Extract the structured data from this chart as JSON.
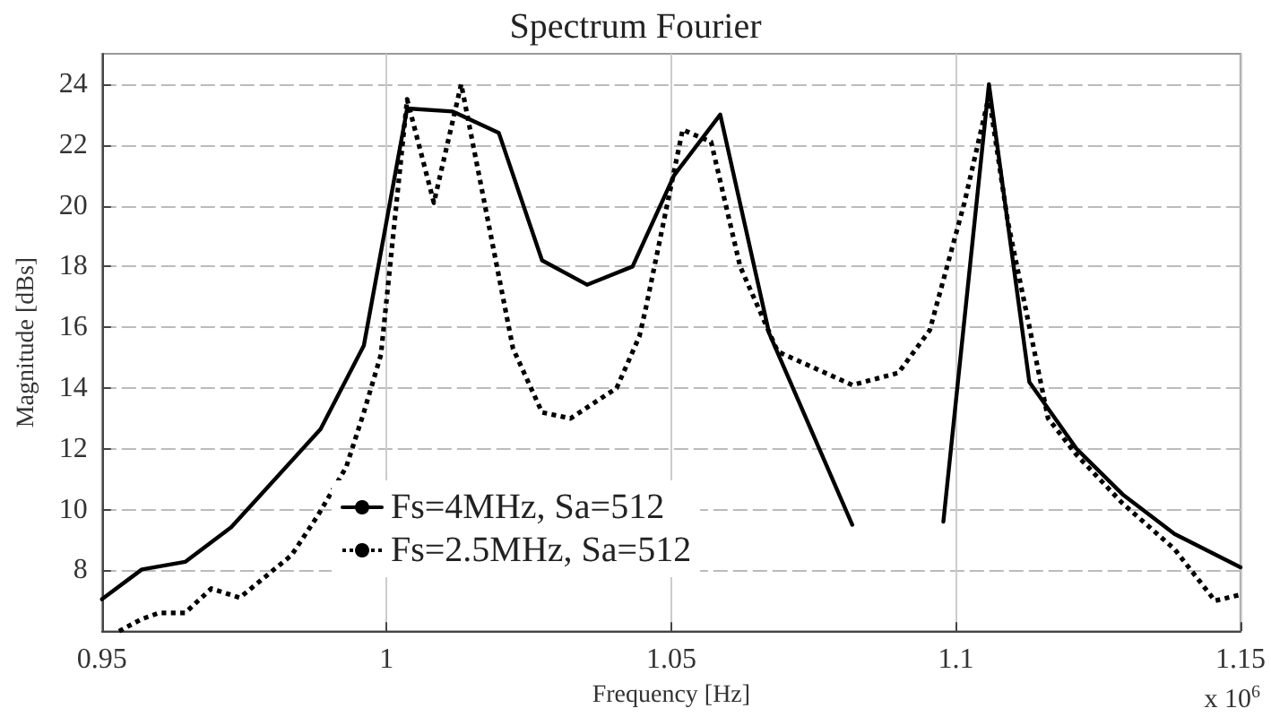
{
  "chart_data": {
    "type": "line",
    "title": "Spectrum Fourier",
    "xlabel": "Frequency [Hz]",
    "ylabel": "Magnitude [dBs]",
    "annotations": [
      "x 10$^{6}$"
    ],
    "xlim": [
      0.95,
      1.15
    ],
    "xticks": [
      0.95,
      1,
      1.05,
      1.1,
      1.15
    ],
    "ylim": [
      6,
      25
    ],
    "yticks": [
      8,
      10,
      12,
      14,
      16,
      18,
      20,
      22,
      24
    ],
    "grid": true,
    "legend": "bottom left",
    "marker": "none",
    "series": [
      {
        "name": "Fs=4MHz, Sa=512",
        "color": "#000000",
        "line_style": "solid",
        "x": [
          0.95,
          0.957,
          0.9646,
          0.9727,
          0.9884,
          0.996,
          1.0036,
          1.0116,
          1.0197,
          1.0273,
          1.0352,
          1.0432,
          1.0505,
          1.0586,
          1.0672,
          1.0818,
          1.0874,
          1.0924,
          1.0978,
          1.1058,
          1.1129,
          1.1212,
          1.1293,
          1.1384,
          1.15
        ],
        "values": [
          7.05,
          8.03,
          8.28,
          9.42,
          12.65,
          15.4,
          23.2,
          23.1,
          22.4,
          18.2,
          17.4,
          18.0,
          21.0,
          23.0,
          15.8,
          9.5,
          null,
          null,
          9.6,
          24.0,
          14.2,
          12.0,
          10.5,
          9.2,
          8.1
        ]
      },
      {
        "name": "Fs=2.5MHz, Sa=512",
        "color": "#000000",
        "line_style": "dotted",
        "x": [
          0.953,
          0.957,
          0.96,
          0.9646,
          0.9692,
          0.9742,
          0.9833,
          0.9879,
          0.9929,
          0.996,
          0.999,
          1.0036,
          1.0083,
          1.0131,
          1.0222,
          1.0273,
          1.0323,
          1.0404,
          1.0444,
          1.0455,
          1.052,
          1.057,
          1.0621,
          1.0687,
          1.0818,
          1.0899,
          1.0954,
          1.1015,
          1.1058,
          1.1091,
          1.1162,
          1.1212,
          1.1293,
          1.1384,
          1.1455,
          1.15
        ],
        "values": [
          6.0,
          6.4,
          6.6,
          6.6,
          7.4,
          7.1,
          8.5,
          9.8,
          11.4,
          13.2,
          15.1,
          23.5,
          20.1,
          24.0,
          15.3,
          13.2,
          13.0,
          14.0,
          15.7,
          16.6,
          22.5,
          22.1,
          18.0,
          15.2,
          14.1,
          14.5,
          15.9,
          20.1,
          23.6,
          19.5,
          13.0,
          11.8,
          10.2,
          8.7,
          7.0,
          7.2
        ]
      }
    ]
  }
}
